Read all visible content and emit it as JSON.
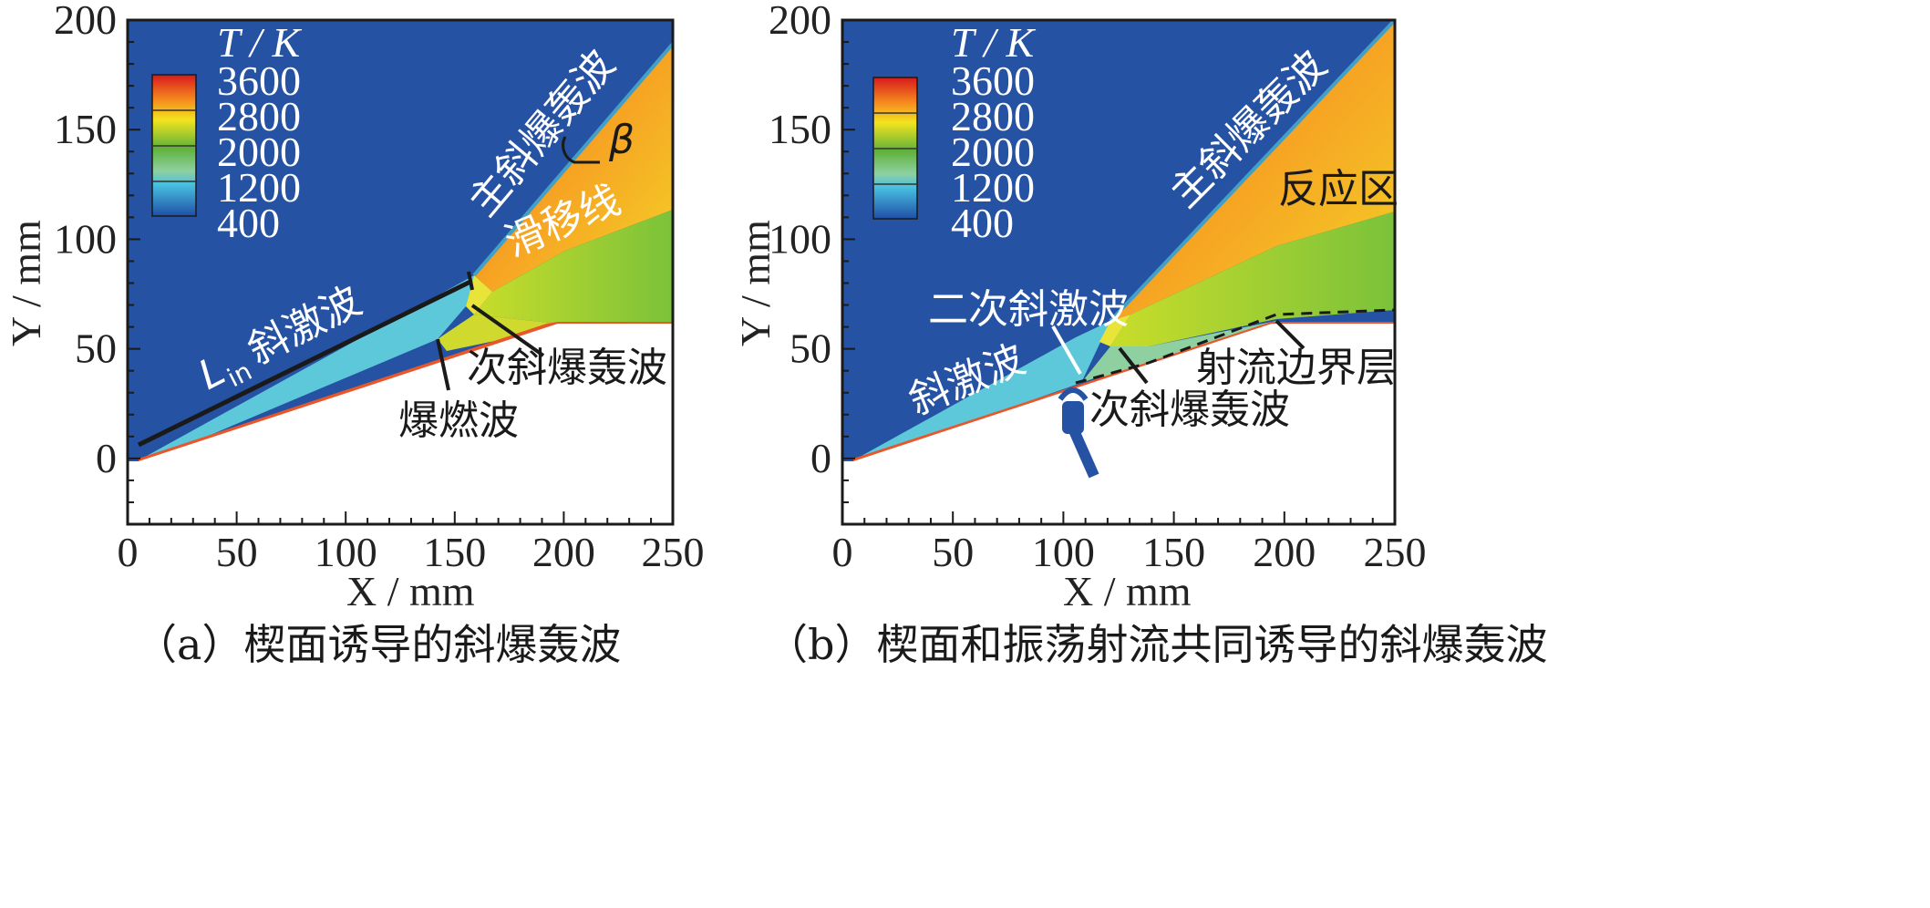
{
  "chart_data": [
    {
      "type": "heatmap",
      "panel": "a",
      "title": "",
      "caption": "（a）楔面诱导的斜爆轰波",
      "xlabel": "X / mm",
      "ylabel": "Y / mm",
      "xlim": [
        0,
        250
      ],
      "ylim": [
        -30,
        200
      ],
      "xticks": [
        0,
        50,
        100,
        150,
        200,
        250
      ],
      "yticks": [
        0,
        50,
        100,
        150,
        200
      ],
      "colorbar": {
        "title": "T / K",
        "ticks": [
          3600,
          2800,
          2000,
          1200,
          400
        ]
      },
      "annotations": [
        "主斜爆轰波",
        "β",
        "滑移线",
        "斜激波",
        "L",
        "in",
        "次斜爆轰波",
        "爆燃波"
      ],
      "features": {
        "wedge_start_x": 5,
        "wedge_kink": [
          200,
          62
        ],
        "oblique_shock_end": [
          158,
          82
        ],
        "main_odw_end": [
          250,
          190
        ]
      }
    },
    {
      "type": "heatmap",
      "panel": "b",
      "title": "",
      "caption": "（b）楔面和振荡射流共同诱导的斜爆轰波",
      "xlabel": "X / mm",
      "ylabel": "Y / mm",
      "xlim": [
        0,
        250
      ],
      "ylim": [
        -30,
        200
      ],
      "xticks": [
        0,
        50,
        100,
        150,
        200,
        250
      ],
      "yticks": [
        0,
        50,
        100,
        150,
        200
      ],
      "colorbar": {
        "title": "T / K",
        "ticks": [
          3600,
          2800,
          2000,
          1200,
          400
        ]
      },
      "annotations": [
        "主斜爆轰波",
        "反应区",
        "二次斜激波",
        "斜激波",
        "射流边界层",
        "次斜爆轰波"
      ],
      "features": {
        "wedge_start_x": 5,
        "wedge_kink": [
          200,
          62
        ],
        "jet_position_x": 103,
        "oblique_shock_end": [
          120,
          62
        ],
        "main_odw_end": [
          250,
          200
        ]
      }
    }
  ]
}
